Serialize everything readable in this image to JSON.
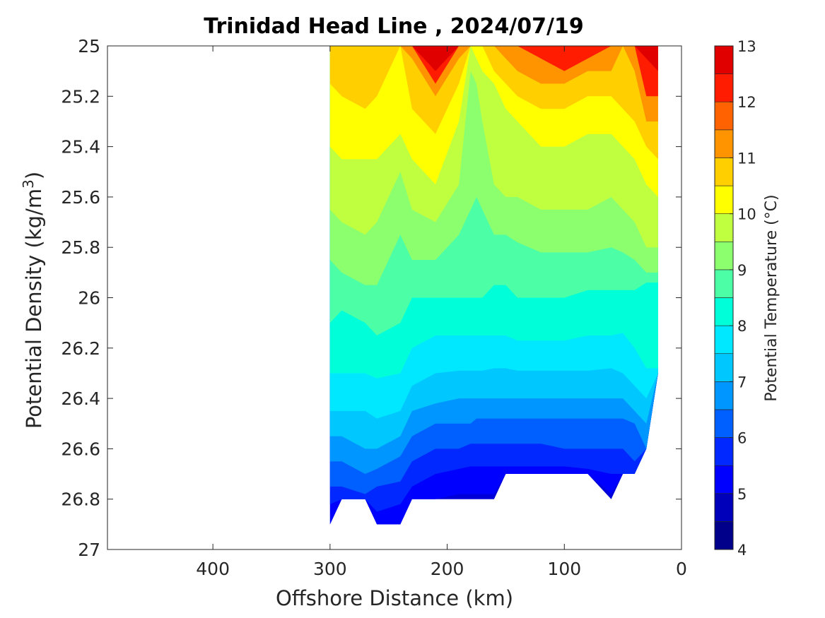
{
  "chart_data": {
    "type": "heatmap",
    "title": "Trinidad Head Line , 2024/07/19",
    "xlabel": "Offshore Distance (km)",
    "ylabel": "Potential Density (kg/m",
    "ylabel_sup": "3",
    "ylabel_end": ")",
    "colorbar_label": "Potential Temperature (°C)",
    "xlim": [
      490,
      0
    ],
    "ylim": [
      25,
      27
    ],
    "x_reversed": true,
    "y_reversed": true,
    "x_ticks": [
      400,
      300,
      200,
      100,
      0
    ],
    "y_ticks": [
      25,
      25.2,
      25.4,
      25.6,
      25.8,
      26,
      26.2,
      26.4,
      26.6,
      26.8,
      27
    ],
    "y_tick_labels": [
      "25",
      "25.2",
      "25.4",
      "25.6",
      "25.8",
      "26",
      "26.2",
      "26.4",
      "26.6",
      "26.8",
      "27"
    ],
    "colorbar_ticks": [
      4,
      5,
      6,
      7,
      8,
      9,
      10,
      11,
      12,
      13
    ],
    "levels": [
      4,
      4.5,
      5,
      5.5,
      6,
      6.5,
      7,
      7.5,
      8,
      8.5,
      9,
      9.5,
      10,
      10.5,
      11,
      11.5,
      12,
      12.5,
      13
    ],
    "colors": [
      "#00008b",
      "#0000ba",
      "#0000ff",
      "#0028ff",
      "#0060ff",
      "#0096ff",
      "#00c8ff",
      "#00e8ff",
      "#00ffd8",
      "#4cffa6",
      "#8cff6e",
      "#c0ff40",
      "#ffff00",
      "#ffcf00",
      "#ff9400",
      "#ff6200",
      "#ff1c00",
      "#e00000",
      "#a80000"
    ],
    "contours_temp_isopycnal_boundaries_at_stations": {
      "x_km": [
        300,
        290,
        270,
        260,
        240,
        230,
        210,
        190,
        180,
        175,
        170,
        160,
        150,
        140,
        120,
        100,
        80,
        60,
        50,
        40,
        30,
        20
      ],
      "bottom_density": [
        26.9,
        26.8,
        26.8,
        26.9,
        26.9,
        26.8,
        26.8,
        26.8,
        26.8,
        26.8,
        26.8,
        26.8,
        26.7,
        26.7,
        26.7,
        26.7,
        26.7,
        26.8,
        26.7,
        26.7,
        26.6,
        26.3
      ]
    }
  }
}
